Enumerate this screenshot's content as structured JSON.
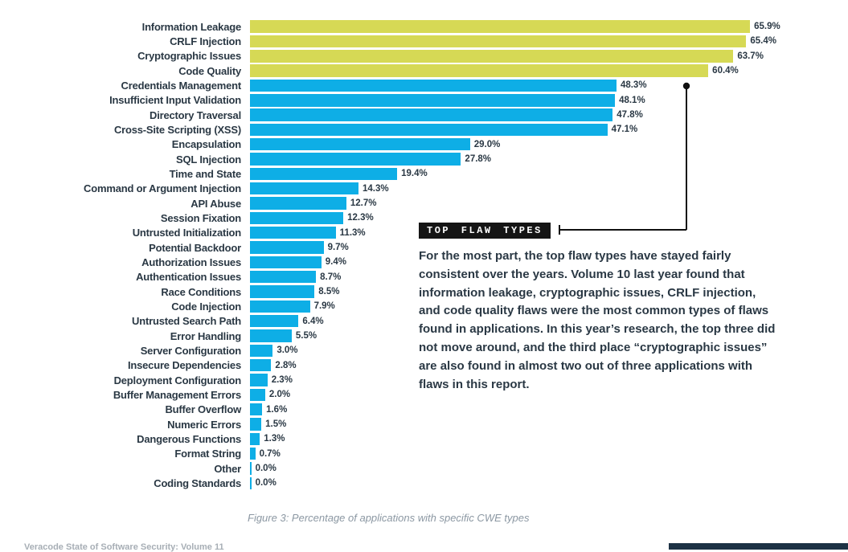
{
  "chart_data": {
    "type": "bar",
    "orientation": "horizontal",
    "caption": "Figure 3: Percentage of applications with specific CWE types",
    "unit": "%",
    "xlim": [
      0,
      66
    ],
    "grid": false,
    "legend": "none",
    "highlight_count": 4,
    "highlight_color": "#d6d955",
    "bar_color": "#0eaee6",
    "label_color": "#2a3844",
    "categories": [
      "Information Leakage",
      "CRLF Injection",
      "Cryptographic Issues",
      "Code Quality",
      "Credentials Management",
      "Insufficient Input Validation",
      "Directory Traversal",
      "Cross-Site Scripting (XSS)",
      "Encapsulation",
      "SQL Injection",
      "Time and State",
      "Command or Argument Injection",
      "API Abuse",
      "Session Fixation",
      "Untrusted Initialization",
      "Potential Backdoor",
      "Authorization Issues",
      "Authentication Issues",
      "Race Conditions",
      "Code Injection",
      "Untrusted Search Path",
      "Error Handling",
      "Server Configuration",
      "Insecure Dependencies",
      "Deployment Configuration",
      "Buffer Management Errors",
      "Buffer Overflow",
      "Numeric Errors",
      "Dangerous Functions",
      "Format String",
      "Other",
      "Coding Standards"
    ],
    "values": [
      65.9,
      65.4,
      63.7,
      60.4,
      48.3,
      48.1,
      47.8,
      47.1,
      29.0,
      27.8,
      19.4,
      14.3,
      12.7,
      12.3,
      11.3,
      9.7,
      9.4,
      8.7,
      8.5,
      7.9,
      6.4,
      5.5,
      3.0,
      2.8,
      2.3,
      2.0,
      1.6,
      1.5,
      1.3,
      0.7,
      0.0,
      0.0
    ],
    "value_labels": [
      "65.9%",
      "65.4%",
      "63.7%",
      "60.4%",
      "48.3%",
      "48.1%",
      "47.8%",
      "47.1%",
      "29.0%",
      "27.8%",
      "19.4%",
      "14.3%",
      "12.7%",
      "12.3%",
      "11.3%",
      "9.7%",
      "9.4%",
      "8.7%",
      "8.5%",
      "7.9%",
      "6.4%",
      "5.5%",
      "3.0%",
      "2.8%",
      "2.3%",
      "2.0%",
      "1.6%",
      "1.5%",
      "1.3%",
      "0.7%",
      "0.0%",
      "0.0%"
    ]
  },
  "callout": {
    "badge_label": "TOP FLAW TYPES",
    "paragraph": "For the most part, the top flaw types have stayed fairly\nconsistent over the years. Volume 10 last year found that\ninformation leakage, cryptographic issues, CRLF injection,\nand code quality flaws were the most common types of flaws\nfound in applications. In this year’s research, the top three did\nnot move around, and the third place “cryptographic issues”\nare also found in almost two out of three applications with\nflaws in this report."
  },
  "footer": {
    "page_text": "Veracode State of Software Security: Volume 11"
  }
}
